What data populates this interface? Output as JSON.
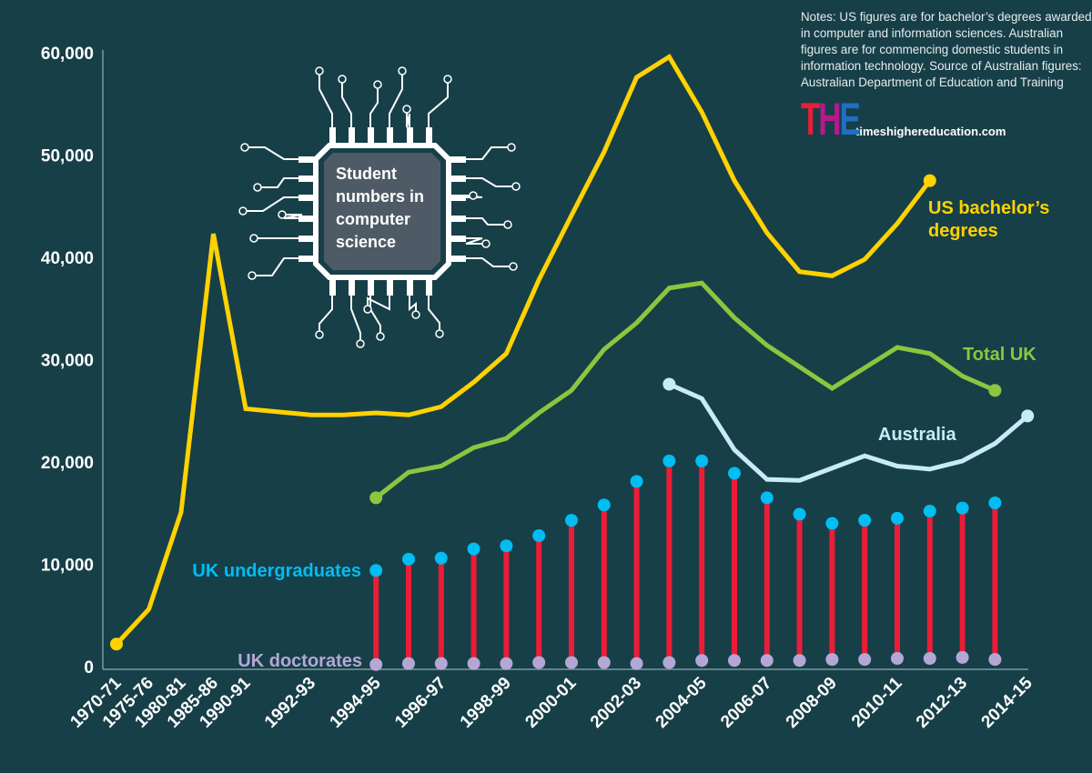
{
  "colors": {
    "background": "#173f48",
    "us": "#ffd200",
    "total_uk": "#8cc63f",
    "australia": "#c8ebf7",
    "uk_undergrad": "#00bdf2",
    "uk_stem": "#ec1c37",
    "uk_doctorates": "#b4a7d6"
  },
  "notes": "Notes: US figures are for bachelor’s degrees awarded in computer and information sciences. Australian figures are for commencing domestic students in information technology. Source of Australian figures: Australian Department of Education and Training",
  "logo": {
    "letters": "THE",
    "site": "timeshighereducation.com"
  },
  "chip_title": [
    "Student",
    "numbers in",
    "computer",
    "science"
  ],
  "chart_data": {
    "type": "line",
    "ylim": [
      0,
      60000
    ],
    "yticks": [
      "0",
      "10,000",
      "20,000",
      "30,000",
      "40,000",
      "50,000",
      "60,000"
    ],
    "ytick_values": [
      0,
      10000,
      20000,
      30000,
      40000,
      50000,
      60000
    ],
    "xtick_labels": [
      "1970-71",
      "1975-76",
      "1980-81",
      "1985-86",
      "1990-91",
      "1992-93",
      "1994-95",
      "1996-97",
      "1998-99",
      "2000-01",
      "2002-03",
      "2004-05",
      "2006-07",
      "2008-09",
      "2010-11",
      "2012-13",
      "2014-15"
    ],
    "grid": false,
    "series": [
      {
        "name": "US bachelor’s degrees",
        "color": "#ffd200",
        "style": "line",
        "x": [
          "1970-71",
          "1975-76",
          "1980-81",
          "1985-86",
          "1990-91",
          "1991-92",
          "1992-93",
          "1993-94",
          "1994-95",
          "1995-96",
          "1996-97",
          "1997-98",
          "1998-99",
          "1999-00",
          "2000-01",
          "2001-02",
          "2002-03",
          "2003-04",
          "2004-05",
          "2005-06",
          "2006-07",
          "2007-08",
          "2008-09",
          "2009-10",
          "2010-11",
          "2011-12"
        ],
        "values": [
          2200,
          5600,
          15100,
          42300,
          25200,
          24900,
          24600,
          24600,
          24800,
          24600,
          25400,
          27800,
          30600,
          37800,
          44100,
          50300,
          57600,
          59600,
          54200,
          47500,
          42400,
          38600,
          38200,
          39800,
          43300,
          47500
        ]
      },
      {
        "name": "Total UK",
        "color": "#8cc63f",
        "style": "line",
        "x": [
          "1994-95",
          "1995-96",
          "1996-97",
          "1997-98",
          "1998-99",
          "1999-00",
          "2000-01",
          "2001-02",
          "2002-03",
          "2003-04",
          "2004-05",
          "2005-06",
          "2006-07",
          "2007-08",
          "2008-09",
          "2009-10",
          "2010-11",
          "2011-12",
          "2012-13",
          "2013-14"
        ],
        "values": [
          16500,
          19000,
          19600,
          21400,
          22300,
          24800,
          27000,
          31000,
          33600,
          37000,
          37500,
          34100,
          31400,
          29300,
          27200,
          29200,
          31200,
          30600,
          28400,
          27000
        ]
      },
      {
        "name": "Australia",
        "color": "#c8ebf7",
        "style": "line",
        "x": [
          "2003-04",
          "2004-05",
          "2005-06",
          "2006-07",
          "2007-08",
          "2008-09",
          "2009-10",
          "2010-11",
          "2011-12",
          "2012-13",
          "2013-14",
          "2014-15"
        ],
        "values": [
          27600,
          26200,
          21200,
          18300,
          18200,
          19400,
          20600,
          19600,
          19300,
          20100,
          21800,
          24500
        ]
      },
      {
        "name": "UK undergraduates",
        "color": "#00bdf2",
        "style": "lollipop",
        "x": [
          "1994-95",
          "1995-96",
          "1996-97",
          "1997-98",
          "1998-99",
          "1999-00",
          "2000-01",
          "2001-02",
          "2002-03",
          "2003-04",
          "2004-05",
          "2005-06",
          "2006-07",
          "2007-08",
          "2008-09",
          "2009-10",
          "2010-11",
          "2011-12",
          "2012-13",
          "2013-14"
        ],
        "values": [
          9400,
          10500,
          10600,
          11500,
          11800,
          12800,
          14300,
          15800,
          18100,
          20100,
          20100,
          18900,
          16500,
          14900,
          14000,
          14300,
          14500,
          15200,
          15500,
          16000
        ]
      },
      {
        "name": "UK doctorates",
        "color": "#b4a7d6",
        "style": "dots",
        "x": [
          "1994-95",
          "1995-96",
          "1996-97",
          "1997-98",
          "1998-99",
          "1999-00",
          "2000-01",
          "2001-02",
          "2002-03",
          "2003-04",
          "2004-05",
          "2005-06",
          "2006-07",
          "2007-08",
          "2008-09",
          "2009-10",
          "2010-11",
          "2011-12",
          "2012-13",
          "2013-14"
        ],
        "values": [
          200,
          300,
          300,
          300,
          300,
          400,
          400,
          400,
          300,
          400,
          600,
          600,
          600,
          600,
          700,
          700,
          800,
          800,
          900,
          700
        ]
      }
    ]
  }
}
